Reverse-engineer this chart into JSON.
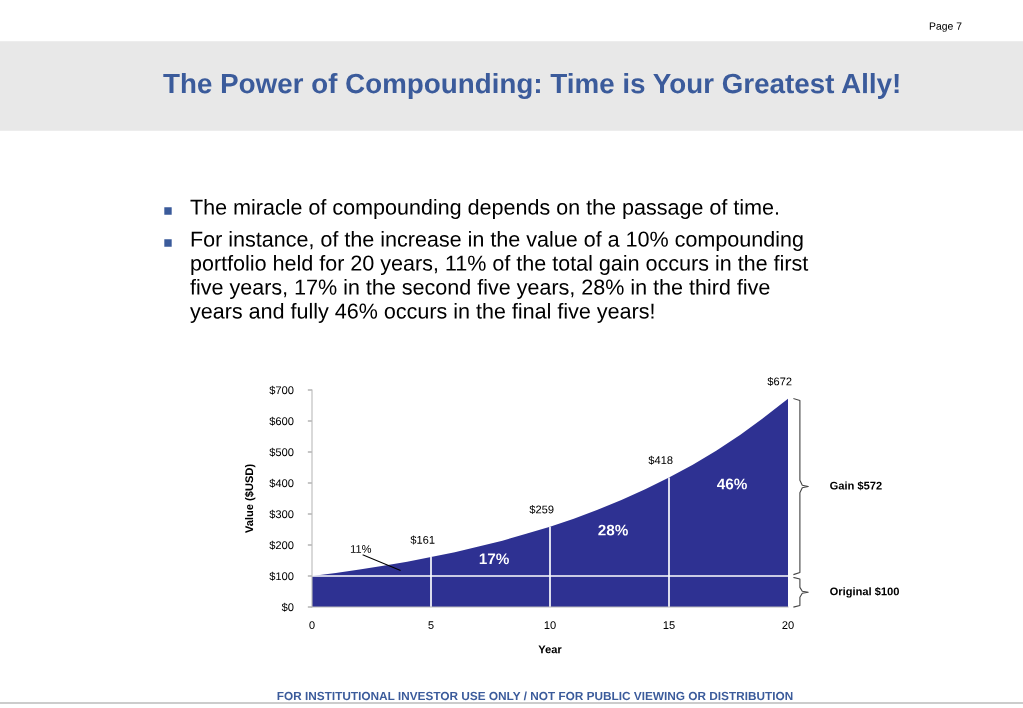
{
  "chart_data": {
    "type": "area",
    "title": "The Power of Compounding: Time is Your Greatest Ally!",
    "xlabel": "Year",
    "ylabel": "Value ($USD)",
    "x": [
      0,
      1,
      2,
      3,
      4,
      5,
      6,
      7,
      8,
      9,
      10,
      11,
      12,
      13,
      14,
      15,
      16,
      17,
      18,
      19,
      20
    ],
    "series": [
      {
        "color": "#2e3192",
        "values": [
          100,
          110,
          121,
          133,
          146,
          161,
          177,
          195,
          214,
          236,
          259,
          285,
          314,
          345,
          380,
          418,
          459,
          505,
          556,
          612,
          672
        ]
      }
    ],
    "xlim": [
      0,
      20
    ],
    "xticks": [
      0,
      5,
      10,
      15,
      20
    ],
    "ylim": [
      0,
      700
    ],
    "yticks": [
      {
        "value": 0,
        "label": "$0"
      },
      {
        "value": 100,
        "label": "$100"
      },
      {
        "value": 200,
        "label": "$200"
      },
      {
        "value": 300,
        "label": "$300"
      },
      {
        "value": 400,
        "label": "$400"
      },
      {
        "value": 500,
        "label": "$500"
      },
      {
        "value": 600,
        "label": "$600"
      },
      {
        "value": 700,
        "label": "$700"
      }
    ],
    "grid": false,
    "legend": false,
    "ref_lines": [
      {
        "axis": "x",
        "value": 5,
        "color": "#ffffff"
      },
      {
        "axis": "x",
        "value": 10,
        "color": "#ffffff"
      },
      {
        "axis": "x",
        "value": 15,
        "color": "#ffffff"
      },
      {
        "axis": "y",
        "value": 100,
        "color": "#ffffff"
      }
    ],
    "annotations": [
      {
        "text": "$161",
        "x": 5,
        "y": 161
      },
      {
        "text": "$259",
        "x": 10,
        "y": 259
      },
      {
        "text": "$418",
        "x": 15,
        "y": 418
      },
      {
        "text": "$672",
        "x": 20,
        "y": 672
      },
      "11%",
      "17%",
      "28%",
      "46%",
      "The miracle of compounding depends on the passage of time.",
      "For instance, of the increase in the value of a 10% compounding\nportfolio held for 20 years, 11% of the total gain occurs in the first\nfive years, 17% in the second five years, 28% in the third five\nyears and fully 46% occurs in the final five years!",
      "Gain $572",
      "Original $100",
      "Page 7",
      "FOR INSTITUTIONAL INVESTOR USE ONLY / NOT FOR PUBLIC VIEWING OR DISTRIBUTION"
    ]
  }
}
